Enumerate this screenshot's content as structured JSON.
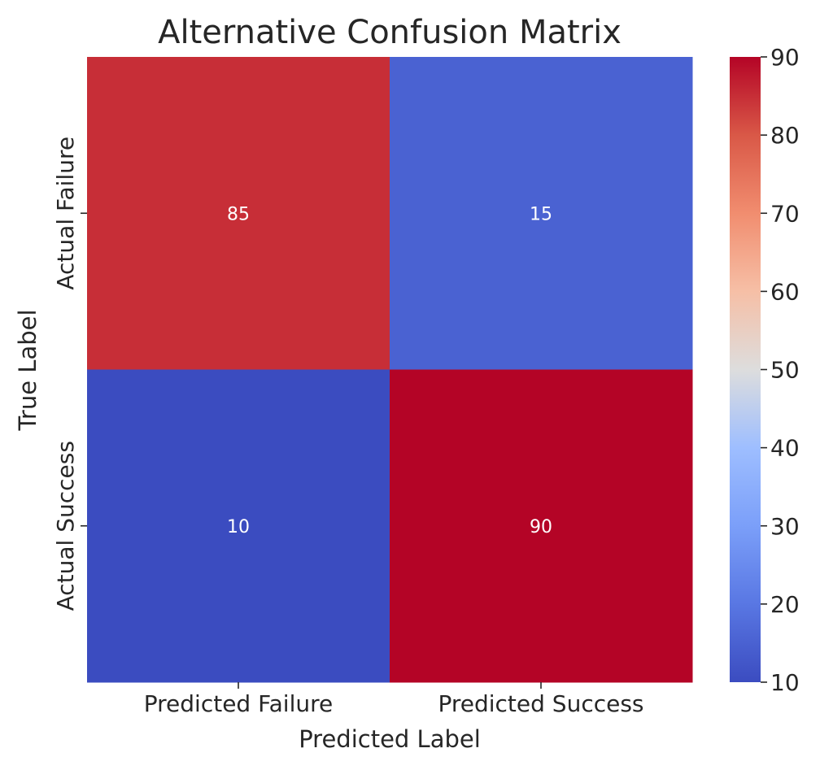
{
  "chart_data": {
    "type": "heatmap",
    "title": "Alternative Confusion Matrix",
    "xlabel": "Predicted Label",
    "ylabel": "True Label",
    "x_categories": [
      "Predicted Failure",
      "Predicted Success"
    ],
    "y_categories": [
      "Actual Failure",
      "Actual Success"
    ],
    "values": [
      [
        85,
        15
      ],
      [
        10,
        90
      ]
    ],
    "colormap": "coolwarm",
    "colorbar": {
      "min": 10,
      "max": 90,
      "ticks": [
        10,
        20,
        30,
        40,
        50,
        60,
        70,
        80,
        90
      ],
      "tick_labels": [
        "10",
        "20",
        "30",
        "40",
        "50",
        "60",
        "70",
        "80",
        "90"
      ]
    },
    "annotations": true,
    "grid": false
  }
}
